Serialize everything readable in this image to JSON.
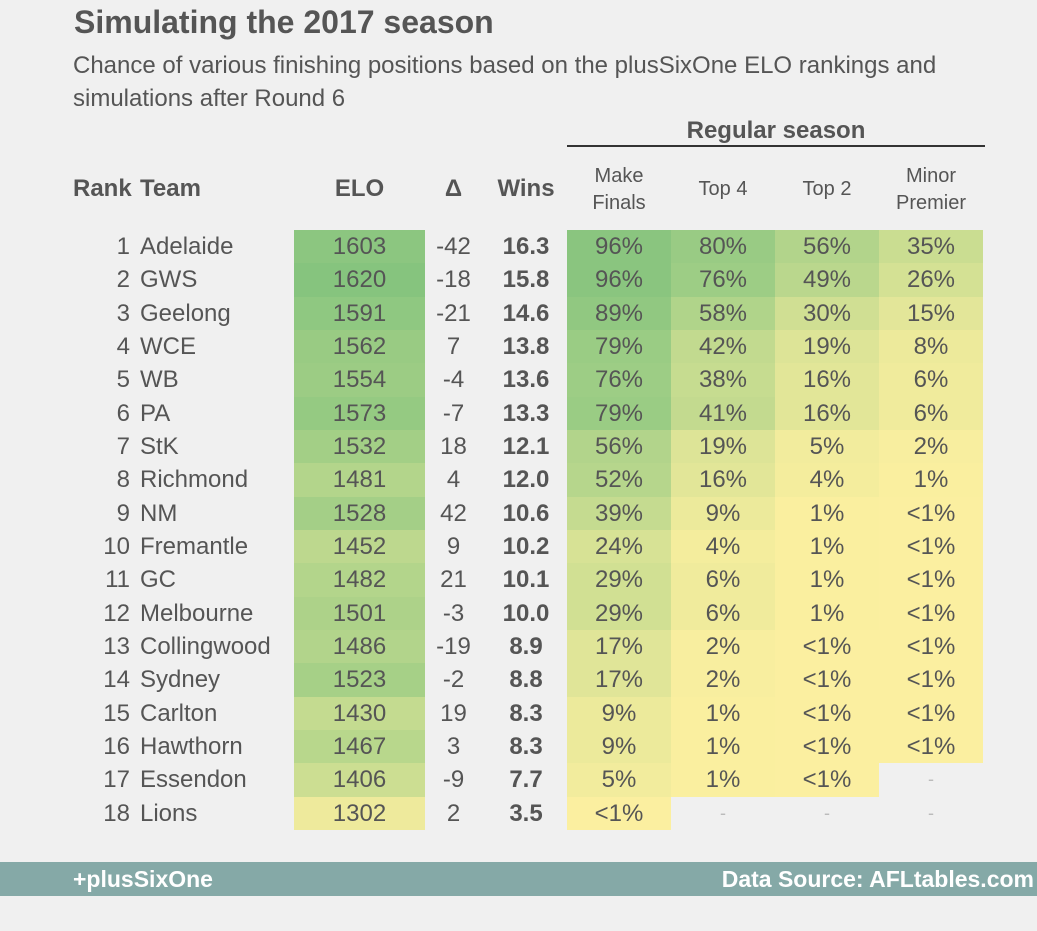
{
  "title": "Simulating the 2017 season",
  "subtitle": "Chance of various finishing positions based on the plusSixOne ELO rankings and simulations after Round 6",
  "group_label": "Regular season",
  "footer": {
    "brand": "+plusSixOne",
    "source": "Data Source: AFLtables.com"
  },
  "colors": {
    "background": "#f0f0f0",
    "footer": "#85a9a7",
    "scale_high": "#86c47e",
    "scale_low": "#fdf0a0"
  },
  "chart_data": {
    "type": "table",
    "columns": {
      "rank": "Rank",
      "team": "Team",
      "elo": "ELO",
      "delta": "Δ",
      "wins": "Wins",
      "finals": [
        "Make",
        "Finals"
      ],
      "top4": "Top 4",
      "top2": "Top 2",
      "minor": [
        "Minor",
        "Premier"
      ]
    },
    "rows": [
      {
        "rank": "1",
        "team": "Adelaide",
        "elo": "1603",
        "delta": "-42",
        "wins": "16.3",
        "finals": "96%",
        "top4": "80%",
        "top2": "56%",
        "minor": "35%"
      },
      {
        "rank": "2",
        "team": "GWS",
        "elo": "1620",
        "delta": "-18",
        "wins": "15.8",
        "finals": "96%",
        "top4": "76%",
        "top2": "49%",
        "minor": "26%"
      },
      {
        "rank": "3",
        "team": "Geelong",
        "elo": "1591",
        "delta": "-21",
        "wins": "14.6",
        "finals": "89%",
        "top4": "58%",
        "top2": "30%",
        "minor": "15%"
      },
      {
        "rank": "4",
        "team": "WCE",
        "elo": "1562",
        "delta": "7",
        "wins": "13.8",
        "finals": "79%",
        "top4": "42%",
        "top2": "19%",
        "minor": "8%"
      },
      {
        "rank": "5",
        "team": "WB",
        "elo": "1554",
        "delta": "-4",
        "wins": "13.6",
        "finals": "76%",
        "top4": "38%",
        "top2": "16%",
        "minor": "6%"
      },
      {
        "rank": "6",
        "team": "PA",
        "elo": "1573",
        "delta": "-7",
        "wins": "13.3",
        "finals": "79%",
        "top4": "41%",
        "top2": "16%",
        "minor": "6%"
      },
      {
        "rank": "7",
        "team": "StK",
        "elo": "1532",
        "delta": "18",
        "wins": "12.1",
        "finals": "56%",
        "top4": "19%",
        "top2": "5%",
        "minor": "2%"
      },
      {
        "rank": "8",
        "team": "Richmond",
        "elo": "1481",
        "delta": "4",
        "wins": "12.0",
        "finals": "52%",
        "top4": "16%",
        "top2": "4%",
        "minor": "1%"
      },
      {
        "rank": "9",
        "team": "NM",
        "elo": "1528",
        "delta": "42",
        "wins": "10.6",
        "finals": "39%",
        "top4": "9%",
        "top2": "1%",
        "minor": "<1%"
      },
      {
        "rank": "10",
        "team": "Fremantle",
        "elo": "1452",
        "delta": "9",
        "wins": "10.2",
        "finals": "24%",
        "top4": "4%",
        "top2": "1%",
        "minor": "<1%"
      },
      {
        "rank": "11",
        "team": "GC",
        "elo": "1482",
        "delta": "21",
        "wins": "10.1",
        "finals": "29%",
        "top4": "6%",
        "top2": "1%",
        "minor": "<1%"
      },
      {
        "rank": "12",
        "team": "Melbourne",
        "elo": "1501",
        "delta": "-3",
        "wins": "10.0",
        "finals": "29%",
        "top4": "6%",
        "top2": "1%",
        "minor": "<1%"
      },
      {
        "rank": "13",
        "team": "Collingwood",
        "elo": "1486",
        "delta": "-19",
        "wins": "8.9",
        "finals": "17%",
        "top4": "2%",
        "top2": "<1%",
        "minor": "<1%"
      },
      {
        "rank": "14",
        "team": "Sydney",
        "elo": "1523",
        "delta": "-2",
        "wins": "8.8",
        "finals": "17%",
        "top4": "2%",
        "top2": "<1%",
        "minor": "<1%"
      },
      {
        "rank": "15",
        "team": "Carlton",
        "elo": "1430",
        "delta": "19",
        "wins": "8.3",
        "finals": "9%",
        "top4": "1%",
        "top2": "<1%",
        "minor": "<1%"
      },
      {
        "rank": "16",
        "team": "Hawthorn",
        "elo": "1467",
        "delta": "3",
        "wins": "8.3",
        "finals": "9%",
        "top4": "1%",
        "top2": "<1%",
        "minor": "<1%"
      },
      {
        "rank": "17",
        "team": "Essendon",
        "elo": "1406",
        "delta": "-9",
        "wins": "7.7",
        "finals": "5%",
        "top4": "1%",
        "top2": "<1%",
        "minor": "-"
      },
      {
        "rank": "18",
        "team": "Lions",
        "elo": "1302",
        "delta": "2",
        "wins": "3.5",
        "finals": "<1%",
        "top4": "-",
        "top2": "-",
        "minor": "-"
      }
    ]
  }
}
